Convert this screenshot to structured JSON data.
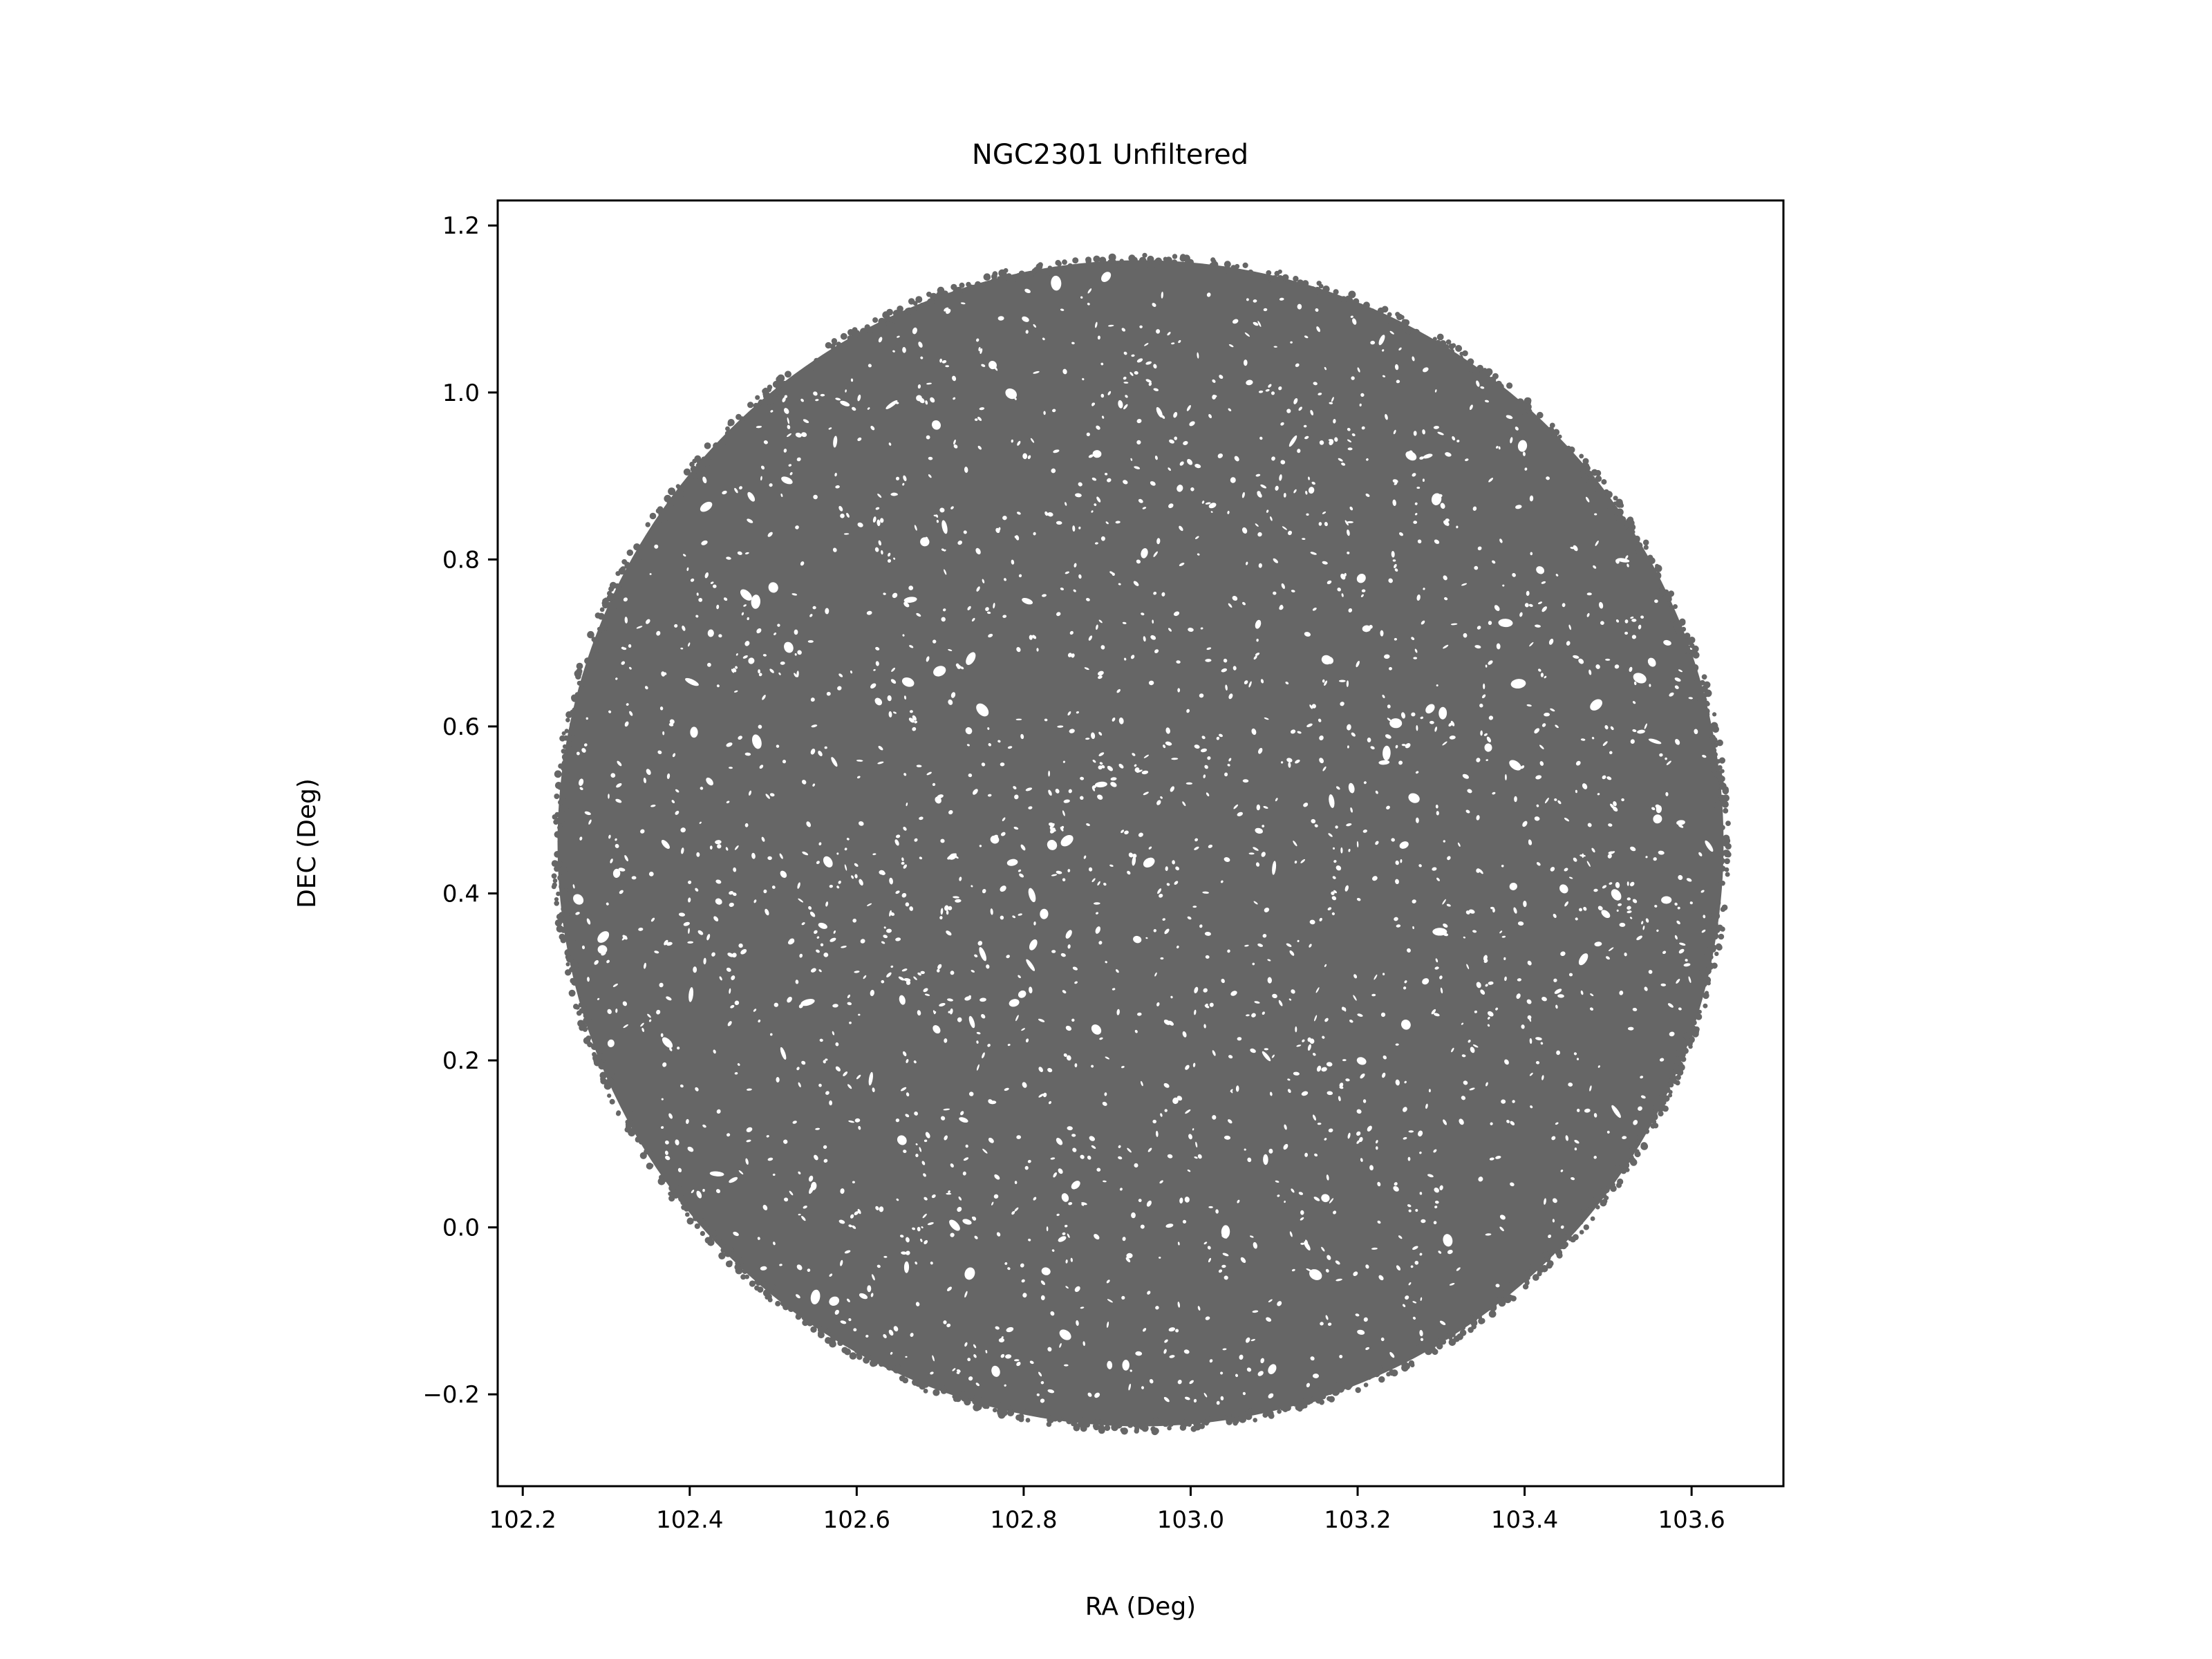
{
  "chart_data": {
    "type": "scatter",
    "title": "NGC2301 Unfiltered",
    "xlabel": "RA (Deg)",
    "ylabel": "DEC (Deg)",
    "xlim": [
      102.17,
      103.71
    ],
    "ylim": [
      -0.31,
      1.23
    ],
    "xticks": [
      102.2,
      102.4,
      102.6,
      102.8,
      103.0,
      103.2,
      103.4,
      103.6
    ],
    "xtick_labels": [
      "102.2",
      "102.4",
      "102.6",
      "102.8",
      "103.0",
      "103.2",
      "103.4",
      "103.6"
    ],
    "yticks": [
      -0.2,
      0.0,
      0.2,
      0.4,
      0.6,
      0.8,
      1.0,
      1.2
    ],
    "ytick_labels": [
      "−0.2",
      "0.0",
      "0.2",
      "0.4",
      "0.6",
      "0.8",
      "1.0",
      "1.2"
    ],
    "grid": false,
    "legend": "none",
    "series": [
      {
        "color": "#666666",
        "shape": "uniform disk of point sources",
        "center": [
          102.94,
          0.46
        ],
        "radius_deg": 0.7
      }
    ],
    "colors": {
      "points": "#666666",
      "axes": "#000000",
      "background": "#ffffff"
    }
  }
}
